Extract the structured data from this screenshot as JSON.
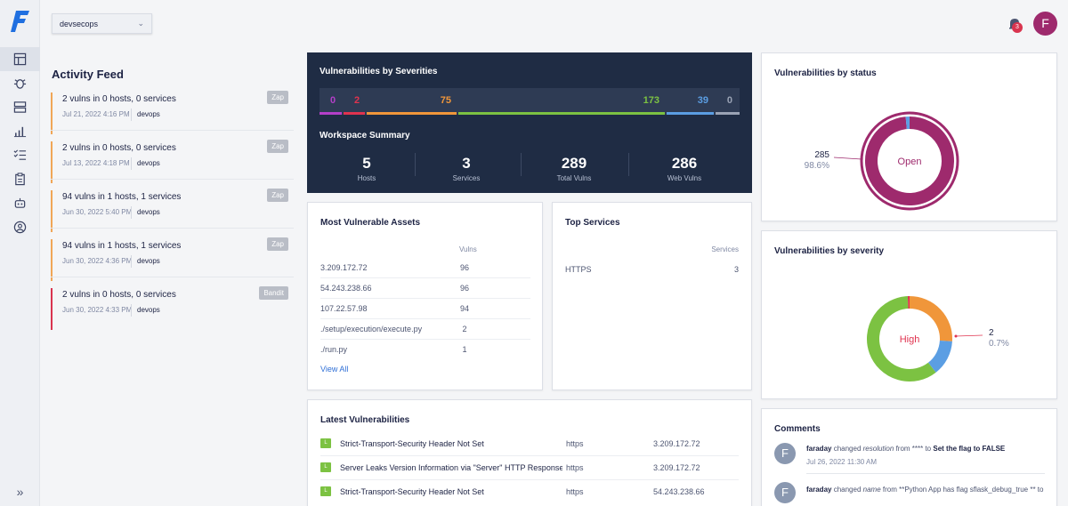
{
  "workspace": {
    "selected": "devsecops"
  },
  "notifications": {
    "count": "3"
  },
  "user": {
    "initial": "F"
  },
  "nav": {
    "collapse_label": "»"
  },
  "activity_feed": {
    "title": "Activity Feed",
    "items": [
      {
        "text": "2 vulns in 0 hosts, 0 services",
        "date": "Jul 21, 2022 4:16 PM",
        "user": "devops",
        "tool": "Zap"
      },
      {
        "text": "2 vulns in 0 hosts, 0 services",
        "date": "Jul 13, 2022 4:18 PM",
        "user": "devops",
        "tool": "Zap"
      },
      {
        "text": "94 vulns in 1 hosts, 1 services",
        "date": "Jun 30, 2022 5:40 PM",
        "user": "devops",
        "tool": "Zap"
      },
      {
        "text": "94 vulns in 1 hosts, 1 services",
        "date": "Jun 30, 2022 4:36 PM",
        "user": "devops",
        "tool": "Zap"
      },
      {
        "text": "2 vulns in 0 hosts, 0 services",
        "date": "Jun 30, 2022 4:33 PM",
        "user": "devops",
        "tool": "Bandit"
      }
    ]
  },
  "severities": {
    "title": "Vulnerabilities by Severities",
    "segments": [
      {
        "value": "0",
        "color": "#b43fc9"
      },
      {
        "value": "2",
        "color": "#e0334f"
      },
      {
        "value": "75",
        "color": "#f0963a"
      },
      {
        "value": "173",
        "color": "#7cc242"
      },
      {
        "value": "39",
        "color": "#5b9ee3"
      },
      {
        "value": "0",
        "color": "#9aa3b5"
      }
    ]
  },
  "workspace_summary": {
    "title": "Workspace Summary",
    "stats": [
      {
        "value": "5",
        "label": "Hosts"
      },
      {
        "value": "3",
        "label": "Services"
      },
      {
        "value": "289",
        "label": "Total Vulns"
      },
      {
        "value": "286",
        "label": "Web Vulns"
      }
    ]
  },
  "assets": {
    "title": "Most Vulnerable Assets",
    "col": "Vulns",
    "rows": [
      {
        "name": "3.209.172.72",
        "vulns": "96"
      },
      {
        "name": "54.243.238.66",
        "vulns": "96"
      },
      {
        "name": "107.22.57.98",
        "vulns": "94"
      },
      {
        "name": "./setup/execution/execute.py",
        "vulns": "2"
      },
      {
        "name": "./run.py",
        "vulns": "1"
      }
    ],
    "view_all": "View All"
  },
  "services": {
    "title": "Top Services",
    "col": "Services",
    "rows": [
      {
        "name": "HTTPS",
        "count": "3"
      }
    ]
  },
  "latest": {
    "title": "Latest Vulnerabilities",
    "rows": [
      {
        "sev": "L",
        "name": "Strict-Transport-Security Header Not Set",
        "proto": "https",
        "ip": "3.209.172.72"
      },
      {
        "sev": "L",
        "name": "Server Leaks Version Information via \"Server\" HTTP Response Header",
        "proto": "https",
        "ip": "3.209.172.72"
      },
      {
        "sev": "L",
        "name": "Strict-Transport-Security Header Not Set",
        "proto": "https",
        "ip": "54.243.238.66"
      }
    ]
  },
  "by_status": {
    "title": "Vulnerabilities by status",
    "center": "Open",
    "callout_value": "285",
    "callout_pct": "98.6%",
    "open_fraction": 0.986,
    "colors": {
      "open": "#9e2a6d",
      "other": "#5b9ee3"
    }
  },
  "by_severity": {
    "title": "Vulnerabilities by severity",
    "center": "High",
    "callout_value": "2",
    "callout_pct": "0.7%",
    "slices": [
      {
        "value": 75,
        "color": "#f0963a"
      },
      {
        "value": 39,
        "color": "#5b9ee3"
      },
      {
        "value": 173,
        "color": "#7cc242"
      },
      {
        "value": 2,
        "color": "#e0334f"
      }
    ]
  },
  "comments": {
    "title": "Comments",
    "items": [
      {
        "initial": "F",
        "author": "faraday",
        "action": "changed",
        "field": "resolution",
        "from_text": "from **** to",
        "to_text": "Set the flag to FALSE",
        "date": "Jul 26, 2022 11:30 AM"
      },
      {
        "initial": "F",
        "author": "faraday",
        "action": "changed",
        "field": "name",
        "from_text": "from **Python App has flag sflask_debug_true ** to",
        "to_text": "",
        "date": ""
      }
    ]
  }
}
